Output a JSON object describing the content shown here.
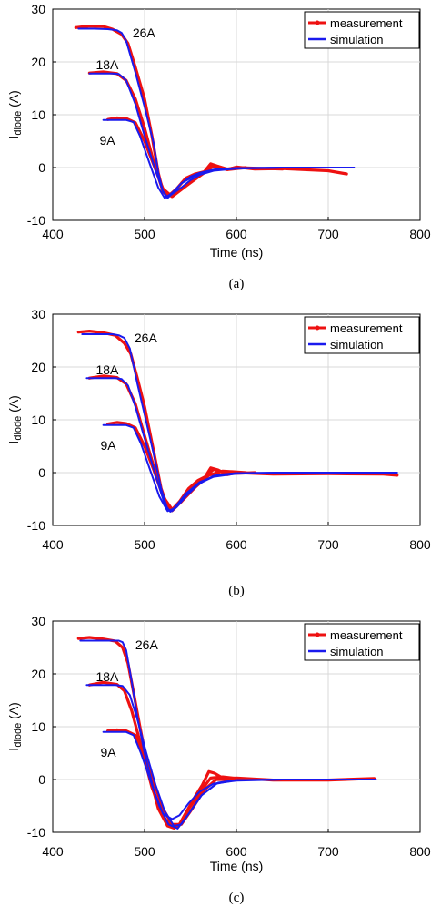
{
  "chart_data": [
    {
      "type": "line",
      "caption": "(a)",
      "xlabel": "Time (ns)",
      "ylabel": "I",
      "ylabel_sub": "diode",
      "ylabel_unit": " (A)",
      "xlim": [
        400,
        800
      ],
      "ylim": [
        -10,
        30
      ],
      "xticks": [
        "400",
        "500",
        "600",
        "700",
        "800"
      ],
      "yticks": [
        "-10",
        "0",
        "10",
        "20",
        "30"
      ],
      "grid": true,
      "legend_position": "top-right",
      "legend": [
        "measurement",
        "simulation"
      ],
      "colors": {
        "measurement": "#ee1111",
        "simulation": "#1a1aee"
      },
      "annotations": [
        {
          "text": "26A",
          "x": 487,
          "y": 25.5
        },
        {
          "text": "18A",
          "x": 447,
          "y": 19.5
        },
        {
          "text": "9A",
          "x": 451,
          "y": 5.2
        }
      ],
      "series": [
        {
          "name": "measurement",
          "label": "26A",
          "x": [
            425,
            440,
            455,
            465,
            475,
            482,
            490,
            500,
            508,
            515,
            520,
            525,
            535,
            545,
            555,
            565,
            572,
            580,
            590,
            600,
            620,
            650,
            700,
            720
          ],
          "y": [
            26.5,
            26.8,
            26.7,
            26.2,
            25.2,
            23.5,
            19.0,
            13.0,
            6.0,
            -1.0,
            -4.5,
            -5.5,
            -4.0,
            -2.0,
            -1.2,
            -0.8,
            0.7,
            0.2,
            -0.4,
            0.1,
            -0.3,
            -0.2,
            -0.6,
            -1.2
          ]
        },
        {
          "name": "measurement",
          "label": "18A",
          "x": [
            440,
            455,
            470,
            480,
            490,
            500,
            510,
            520,
            530,
            545,
            560,
            575,
            590,
            600,
            650
          ],
          "y": [
            17.9,
            18.1,
            17.8,
            16.5,
            13.0,
            7.5,
            1.0,
            -4.5,
            -5.5,
            -3.5,
            -1.5,
            0.5,
            -0.3,
            0.0,
            -0.3
          ]
        },
        {
          "name": "measurement",
          "label": "9A",
          "x": [
            460,
            470,
            480,
            490,
            500,
            510,
            520,
            530,
            545,
            560,
            575,
            590,
            610
          ],
          "y": [
            9.1,
            9.4,
            9.3,
            8.5,
            5.0,
            0.5,
            -4.0,
            -5.5,
            -3.5,
            -1.6,
            0.3,
            -0.4,
            0.0
          ]
        },
        {
          "name": "simulation",
          "label": "26A",
          "x": [
            428,
            445,
            460,
            470,
            475,
            480,
            490,
            500,
            510,
            515,
            520,
            525,
            532,
            540,
            550,
            560,
            570,
            580,
            600,
            650,
            700,
            728
          ],
          "y": [
            26.3,
            26.3,
            26.2,
            26.0,
            25.5,
            24.0,
            18.0,
            11.5,
            4.5,
            -1.0,
            -4.5,
            -5.8,
            -4.6,
            -3.0,
            -1.7,
            -1.0,
            -0.6,
            -0.3,
            -0.1,
            0.0,
            0.0,
            0.0
          ]
        },
        {
          "name": "simulation",
          "label": "18A",
          "x": [
            440,
            455,
            465,
            472,
            480,
            490,
            500,
            510,
            520,
            525,
            530,
            540,
            550,
            560,
            575,
            600,
            650,
            700,
            728
          ],
          "y": [
            17.8,
            17.8,
            17.8,
            17.7,
            16.5,
            12.0,
            6.0,
            0.5,
            -4.5,
            -5.6,
            -5.0,
            -3.8,
            -2.4,
            -1.4,
            -0.6,
            -0.2,
            0.0,
            0.0,
            0.0
          ]
        },
        {
          "name": "simulation",
          "label": "9A",
          "x": [
            455,
            470,
            480,
            488,
            495,
            505,
            515,
            522,
            530,
            540,
            555,
            575,
            600,
            650
          ],
          "y": [
            9.0,
            9.0,
            9.0,
            8.6,
            6.0,
            1.0,
            -3.8,
            -5.8,
            -4.8,
            -3.0,
            -1.5,
            -0.4,
            -0.1,
            0.0
          ]
        }
      ]
    },
    {
      "type": "line",
      "caption": "(b)",
      "xlabel": "",
      "ylabel": "I",
      "ylabel_sub": "diode",
      "ylabel_unit": " (A)",
      "xlim": [
        400,
        800
      ],
      "ylim": [
        -10,
        30
      ],
      "xticks": [
        "400",
        "500",
        "600",
        "700",
        "800"
      ],
      "yticks": [
        "-10",
        "0",
        "10",
        "20",
        "30"
      ],
      "grid": true,
      "legend_position": "top-right",
      "legend": [
        "measurement",
        "simulation"
      ],
      "colors": {
        "measurement": "#ee1111",
        "simulation": "#1a1aee"
      },
      "annotations": [
        {
          "text": "26A",
          "x": 489,
          "y": 25.5
        },
        {
          "text": "18A",
          "x": 447,
          "y": 19.5
        },
        {
          "text": "9A",
          "x": 452,
          "y": 5.2
        }
      ],
      "series": [
        {
          "name": "measurement",
          "label": "26A",
          "x": [
            428,
            440,
            455,
            468,
            478,
            485,
            492,
            500,
            510,
            518,
            525,
            530,
            538,
            548,
            558,
            566,
            572,
            580,
            590,
            600,
            640,
            700,
            760,
            775
          ],
          "y": [
            26.6,
            26.8,
            26.5,
            26.0,
            24.5,
            22.5,
            18.0,
            12.5,
            4.0,
            -3.0,
            -6.5,
            -7.0,
            -5.5,
            -3.0,
            -1.5,
            -0.8,
            0.9,
            0.5,
            -0.4,
            0.0,
            -0.3,
            -0.2,
            -0.3,
            -0.5
          ]
        },
        {
          "name": "measurement",
          "label": "18A",
          "x": [
            440,
            455,
            470,
            480,
            490,
            500,
            512,
            522,
            530,
            540,
            552,
            565,
            575,
            590,
            620
          ],
          "y": [
            17.9,
            18.3,
            18.0,
            16.8,
            13.0,
            7.0,
            0.0,
            -5.5,
            -7.2,
            -5.5,
            -3.0,
            -1.0,
            0.6,
            -0.2,
            0.0
          ]
        },
        {
          "name": "measurement",
          "label": "9A",
          "x": [
            460,
            470,
            480,
            490,
            500,
            510,
            520,
            530,
            540,
            555,
            570,
            585,
            610
          ],
          "y": [
            9.2,
            9.5,
            9.3,
            8.5,
            5.0,
            0.5,
            -4.5,
            -7.0,
            -5.5,
            -2.8,
            -0.5,
            0.3,
            0.0
          ]
        },
        {
          "name": "simulation",
          "label": "26A",
          "x": [
            432,
            450,
            465,
            472,
            478,
            484,
            492,
            500,
            510,
            518,
            525,
            530,
            540,
            550,
            560,
            575,
            600,
            650,
            700,
            775
          ],
          "y": [
            26.2,
            26.2,
            26.2,
            26.0,
            25.5,
            23.5,
            17.0,
            11.0,
            3.5,
            -3.0,
            -7.0,
            -7.3,
            -5.5,
            -3.5,
            -2.0,
            -0.8,
            -0.2,
            0.0,
            0.0,
            0.0
          ]
        },
        {
          "name": "simulation",
          "label": "18A",
          "x": [
            437,
            455,
            468,
            475,
            482,
            490,
            500,
            512,
            522,
            528,
            535,
            545,
            558,
            575,
            600,
            650,
            700
          ],
          "y": [
            17.9,
            17.9,
            17.9,
            17.7,
            16.5,
            12.5,
            6.5,
            -0.5,
            -6.0,
            -7.4,
            -6.5,
            -4.5,
            -2.3,
            -0.6,
            -0.1,
            0.0,
            0.0
          ]
        },
        {
          "name": "simulation",
          "label": "9A",
          "x": [
            455,
            470,
            480,
            488,
            496,
            506,
            516,
            525,
            532,
            545,
            560,
            580,
            600,
            650
          ],
          "y": [
            9.0,
            9.0,
            9.0,
            8.5,
            5.5,
            0.5,
            -4.5,
            -7.3,
            -6.8,
            -4.0,
            -1.8,
            -0.4,
            -0.1,
            0.0
          ]
        }
      ]
    },
    {
      "type": "line",
      "caption": "(c)",
      "xlabel": "Time (ns)",
      "ylabel": "I",
      "ylabel_sub": "diode",
      "ylabel_unit": " (A)",
      "xlim": [
        400,
        800
      ],
      "ylim": [
        -10,
        30
      ],
      "xticks": [
        "400",
        "500",
        "600",
        "700",
        "800"
      ],
      "yticks": [
        "-10",
        "0",
        "10",
        "20",
        "30"
      ],
      "grid": true,
      "legend_position": "top-right",
      "legend": [
        "measurement",
        "simulation"
      ],
      "colors": {
        "measurement": "#ee1111",
        "simulation": "#1a1aee"
      },
      "annotations": [
        {
          "text": "26A",
          "x": 490,
          "y": 25.5
        },
        {
          "text": "18A",
          "x": 447,
          "y": 19.5
        },
        {
          "text": "9A",
          "x": 452,
          "y": 5.2
        }
      ],
      "series": [
        {
          "name": "measurement",
          "label": "26A",
          "x": [
            428,
            440,
            455,
            468,
            476,
            482,
            488,
            495,
            505,
            515,
            525,
            532,
            538,
            546,
            555,
            563,
            570,
            576,
            584,
            592,
            600,
            640,
            700,
            750
          ],
          "y": [
            26.7,
            26.9,
            26.6,
            26.2,
            25.0,
            22.0,
            16.5,
            10.0,
            1.0,
            -5.5,
            -8.8,
            -9.2,
            -8.5,
            -6.0,
            -3.2,
            -1.0,
            1.5,
            1.2,
            0.4,
            0.2,
            0.3,
            -0.1,
            -0.1,
            0.2
          ]
        },
        {
          "name": "measurement",
          "label": "18A",
          "x": [
            440,
            455,
            470,
            478,
            486,
            496,
            508,
            520,
            530,
            538,
            548,
            560,
            572,
            585,
            610
          ],
          "y": [
            17.9,
            18.4,
            18.0,
            16.8,
            13.0,
            6.5,
            -1.5,
            -7.0,
            -9.0,
            -8.5,
            -5.5,
            -2.5,
            0.3,
            0.5,
            0.0
          ]
        },
        {
          "name": "measurement",
          "label": "9A",
          "x": [
            460,
            470,
            480,
            490,
            500,
            510,
            520,
            530,
            540,
            552,
            565,
            578,
            600
          ],
          "y": [
            9.2,
            9.4,
            9.2,
            8.4,
            4.5,
            -0.5,
            -5.5,
            -8.5,
            -8.5,
            -5.5,
            -2.0,
            0.0,
            0.0
          ]
        },
        {
          "name": "simulation",
          "label": "26A",
          "x": [
            430,
            450,
            465,
            472,
            476,
            480,
            486,
            492,
            500,
            510,
            520,
            530,
            538,
            548,
            560,
            575,
            600,
            650,
            700,
            752
          ],
          "y": [
            26.3,
            26.3,
            26.3,
            26.3,
            26.0,
            24.5,
            18.5,
            12.0,
            5.0,
            -2.0,
            -6.5,
            -7.5,
            -6.8,
            -4.5,
            -2.3,
            -0.8,
            -0.2,
            0.0,
            0.0,
            0.0
          ]
        },
        {
          "name": "simulation",
          "label": "18A",
          "x": [
            437,
            455,
            468,
            476,
            484,
            492,
            502,
            512,
            522,
            532,
            540,
            550,
            562,
            578,
            600,
            650,
            700
          ],
          "y": [
            17.9,
            17.9,
            17.9,
            17.7,
            16.0,
            11.5,
            5.0,
            -1.0,
            -6.0,
            -8.8,
            -8.5,
            -6.0,
            -3.0,
            -0.8,
            -0.1,
            0.0,
            0.0
          ]
        },
        {
          "name": "simulation",
          "label": "9A",
          "x": [
            455,
            470,
            480,
            488,
            496,
            506,
            516,
            526,
            536,
            548,
            562,
            580,
            600,
            650
          ],
          "y": [
            9.0,
            9.0,
            9.0,
            8.4,
            5.0,
            0.0,
            -5.0,
            -8.5,
            -9.3,
            -6.5,
            -3.0,
            -0.6,
            -0.1,
            0.0
          ]
        }
      ]
    }
  ]
}
